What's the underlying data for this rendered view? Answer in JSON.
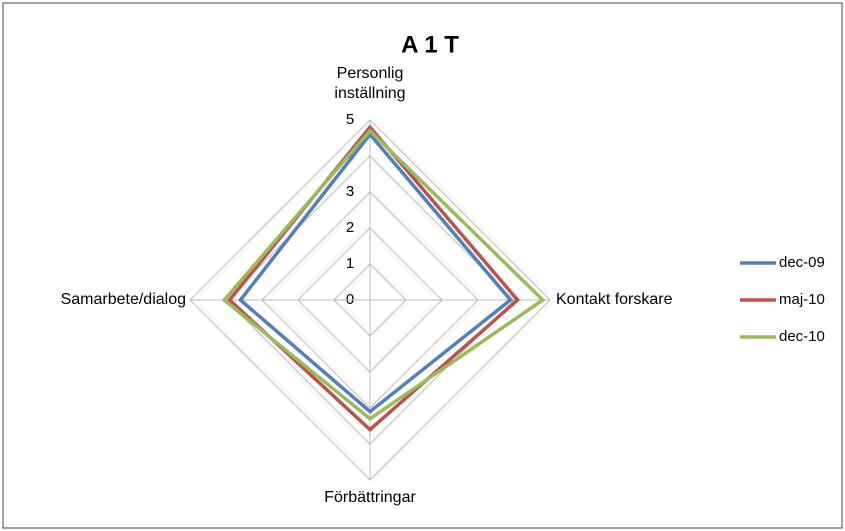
{
  "chart_data": {
    "type": "radar",
    "title": "A 1 T",
    "categories": [
      "Personlig inställning",
      "Kontakt forskare",
      "Förbättringar",
      "Samarbete/dialog"
    ],
    "series": [
      {
        "name": "dec-09",
        "color": "#4f81bd",
        "values": [
          4.6,
          3.9,
          3.1,
          3.6
        ]
      },
      {
        "name": "maj-10",
        "color": "#c0504d",
        "values": [
          4.8,
          4.1,
          3.6,
          3.9
        ]
      },
      {
        "name": "dec-10",
        "color": "#9bbb59",
        "values": [
          4.7,
          4.8,
          3.3,
          4.05
        ]
      }
    ],
    "rlim": [
      0,
      5
    ],
    "rticks": [
      0,
      1,
      2,
      3,
      4,
      5
    ],
    "grid": true,
    "legend": "right"
  }
}
